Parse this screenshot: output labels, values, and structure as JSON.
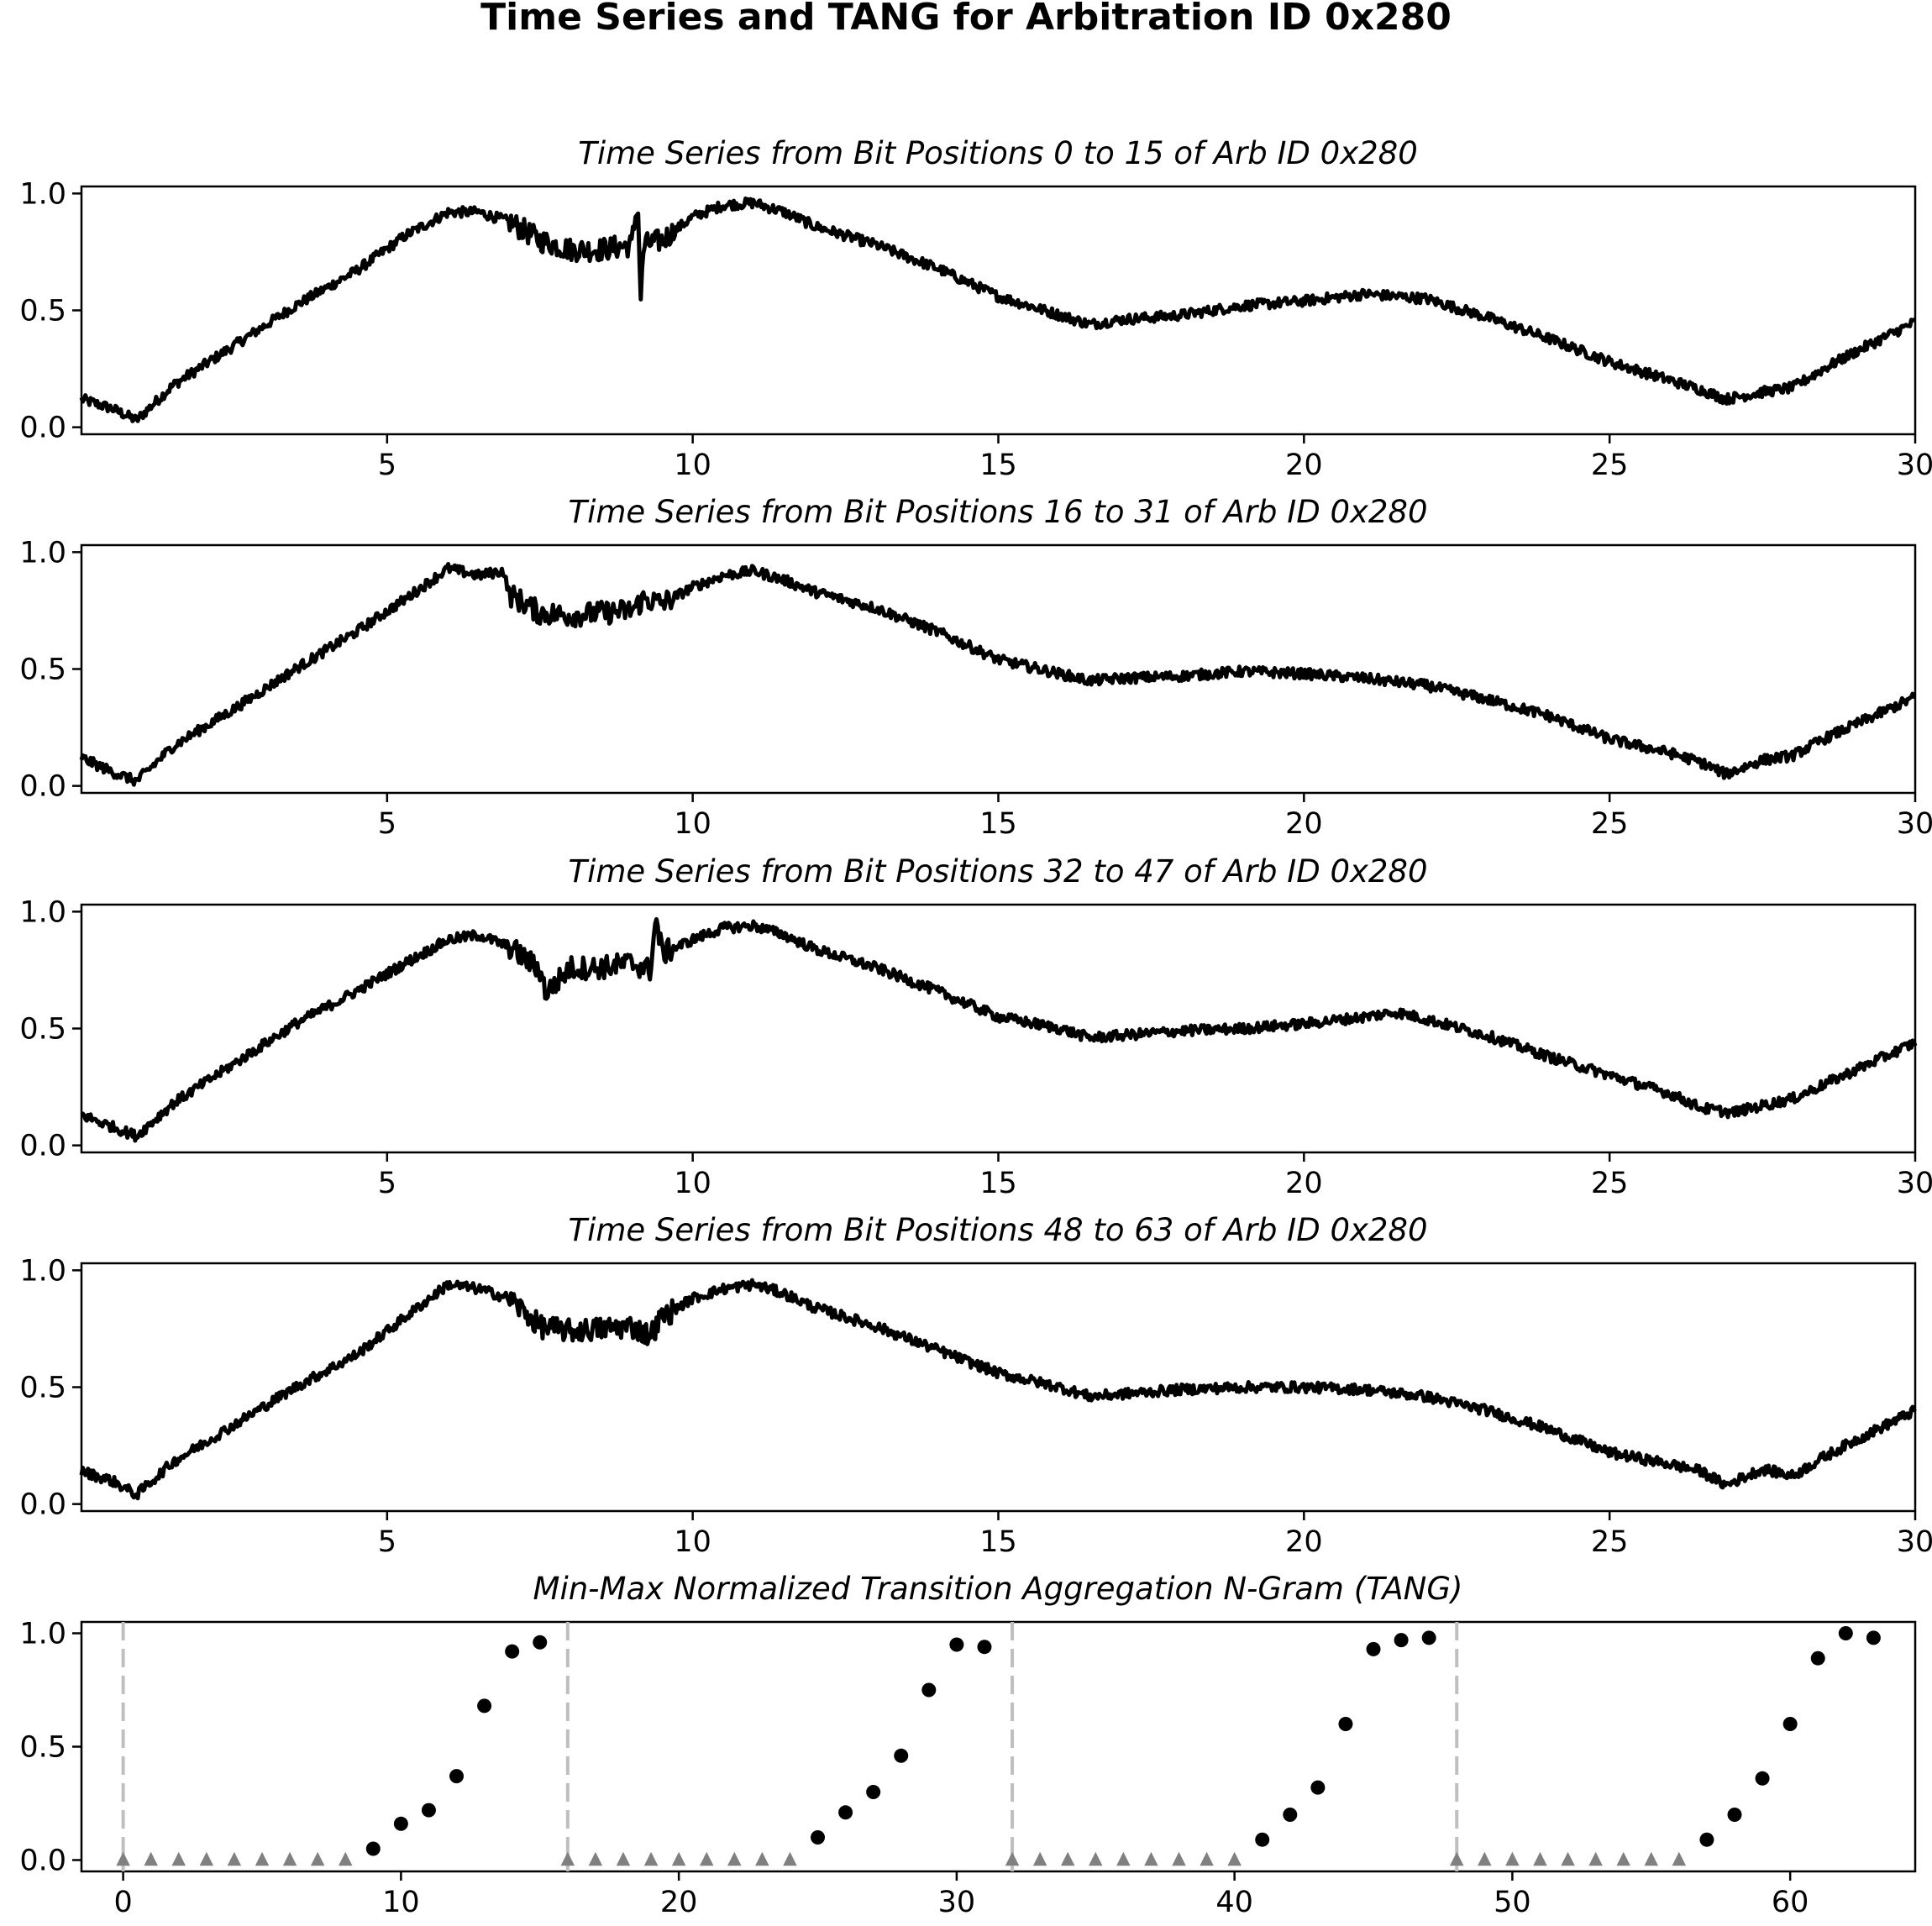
{
  "figure": {
    "title": "Time Series and TANG for Arbitration ID 0x280"
  },
  "chart_data": [
    {
      "type": "line",
      "title": "Time Series from Bit Positions 0 to 15 of Arb ID 0x280",
      "xlim": [
        0,
        30
      ],
      "ylim": [
        -0.03,
        1.03
      ],
      "xticks": [
        "5",
        "10",
        "15",
        "20",
        "25",
        "30"
      ],
      "yticks": [
        "0.0",
        "0.5",
        "1.0"
      ],
      "line_color": "#000000",
      "series": [
        {
          "x": [
            0,
            0.5,
            0.9,
            1.5,
            2.5,
            3.5,
            4.5,
            5.3,
            6.0,
            6.5,
            7.0,
            7.5,
            8.0,
            8.5,
            9.0,
            9.1,
            9.15,
            9.2,
            9.5,
            10.0,
            10.5,
            11.0,
            11.5,
            12.0,
            13.0,
            14.0,
            15.0,
            16.0,
            16.5,
            17.0,
            18.0,
            19.0,
            20.0,
            21.0,
            22.0,
            23.0,
            24.0,
            25.0,
            26.0,
            26.5,
            26.9,
            27.5,
            28.0,
            28.5,
            29.0,
            30.0
          ],
          "y": [
            0.12,
            0.08,
            0.03,
            0.18,
            0.35,
            0.52,
            0.67,
            0.82,
            0.92,
            0.92,
            0.88,
            0.8,
            0.76,
            0.76,
            0.78,
            0.97,
            0.55,
            0.78,
            0.8,
            0.9,
            0.95,
            0.96,
            0.92,
            0.86,
            0.78,
            0.68,
            0.56,
            0.48,
            0.44,
            0.46,
            0.48,
            0.52,
            0.54,
            0.57,
            0.55,
            0.47,
            0.38,
            0.28,
            0.2,
            0.16,
            0.12,
            0.15,
            0.17,
            0.25,
            0.32,
            0.45
          ]
        }
      ]
    },
    {
      "type": "line",
      "title": "Time Series from Bit Positions 16 to 31 of Arb ID 0x280",
      "xlim": [
        0,
        30
      ],
      "ylim": [
        -0.03,
        1.03
      ],
      "xticks": [
        "5",
        "10",
        "15",
        "20",
        "25",
        "30"
      ],
      "yticks": [
        "0.0",
        "0.5",
        "1.0"
      ],
      "line_color": "#000000",
      "series": [
        {
          "x": [
            0,
            0.5,
            0.9,
            1.5,
            2.5,
            3.5,
            4.5,
            5.3,
            6.0,
            6.5,
            6.9,
            7.0,
            7.5,
            8.0,
            8.5,
            9.0,
            9.2,
            9.5,
            10.0,
            10.5,
            11.0,
            11.5,
            12.0,
            13.0,
            14.0,
            15.0,
            16.0,
            16.5,
            17.0,
            18.0,
            19.0,
            20.0,
            21.0,
            22.0,
            23.0,
            24.0,
            25.0,
            26.0,
            26.5,
            26.9,
            27.5,
            28.0,
            28.5,
            29.0,
            30.0
          ],
          "y": [
            0.12,
            0.06,
            0.02,
            0.17,
            0.33,
            0.5,
            0.66,
            0.8,
            0.93,
            0.9,
            0.92,
            0.82,
            0.74,
            0.73,
            0.74,
            0.75,
            0.8,
            0.78,
            0.85,
            0.9,
            0.92,
            0.88,
            0.83,
            0.76,
            0.66,
            0.54,
            0.48,
            0.45,
            0.46,
            0.47,
            0.49,
            0.48,
            0.46,
            0.43,
            0.37,
            0.3,
            0.2,
            0.14,
            0.1,
            0.05,
            0.11,
            0.13,
            0.2,
            0.26,
            0.38
          ]
        }
      ]
    },
    {
      "type": "line",
      "title": "Time Series from Bit Positions 32 to 47 of Arb ID 0x280",
      "xlim": [
        0,
        30
      ],
      "ylim": [
        -0.03,
        1.03
      ],
      "xticks": [
        "5",
        "10",
        "15",
        "20",
        "25",
        "30"
      ],
      "yticks": [
        "0.0",
        "0.5",
        "1.0"
      ],
      "line_color": "#000000",
      "series": [
        {
          "x": [
            0,
            0.5,
            0.9,
            1.5,
            2.5,
            3.5,
            4.5,
            5.3,
            6.0,
            6.5,
            7.0,
            7.5,
            7.6,
            8.0,
            8.5,
            9.0,
            9.3,
            9.4,
            9.5,
            10.0,
            10.5,
            11.0,
            11.5,
            12.0,
            13.0,
            14.0,
            15.0,
            16.0,
            16.5,
            17.0,
            18.0,
            19.0,
            20.0,
            21.0,
            21.5,
            22.0,
            23.0,
            24.0,
            25.0,
            26.0,
            26.5,
            27.0,
            27.5,
            28.0,
            28.5,
            29.0,
            30.0
          ],
          "y": [
            0.13,
            0.08,
            0.04,
            0.18,
            0.35,
            0.52,
            0.66,
            0.78,
            0.88,
            0.9,
            0.85,
            0.75,
            0.65,
            0.76,
            0.76,
            0.78,
            0.75,
            0.97,
            0.82,
            0.88,
            0.93,
            0.94,
            0.9,
            0.84,
            0.76,
            0.66,
            0.55,
            0.5,
            0.46,
            0.47,
            0.49,
            0.5,
            0.52,
            0.55,
            0.57,
            0.54,
            0.47,
            0.38,
            0.3,
            0.22,
            0.16,
            0.14,
            0.17,
            0.2,
            0.26,
            0.32,
            0.44
          ]
        }
      ]
    },
    {
      "type": "line",
      "title": "Time Series from Bit Positions 48 to 63 of Arb ID 0x280",
      "xlim": [
        0,
        30
      ],
      "ylim": [
        -0.03,
        1.03
      ],
      "xticks": [
        "5",
        "10",
        "15",
        "20",
        "25",
        "30"
      ],
      "yticks": [
        "0.0",
        "0.5",
        "1.0"
      ],
      "line_color": "#000000",
      "series": [
        {
          "x": [
            0,
            0.5,
            0.9,
            1.5,
            2.5,
            3.5,
            4.5,
            5.3,
            5.8,
            6.0,
            6.5,
            7.0,
            7.5,
            8.0,
            8.5,
            9.0,
            9.3,
            9.5,
            10.0,
            10.5,
            11.0,
            11.5,
            12.0,
            13.0,
            14.0,
            15.0,
            16.0,
            16.5,
            17.0,
            18.0,
            19.0,
            20.0,
            21.0,
            22.0,
            23.0,
            24.0,
            25.0,
            26.0,
            26.5,
            26.9,
            27.5,
            28.0,
            28.5,
            29.0,
            30.0
          ],
          "y": [
            0.14,
            0.1,
            0.04,
            0.18,
            0.34,
            0.5,
            0.64,
            0.8,
            0.9,
            0.94,
            0.92,
            0.88,
            0.76,
            0.74,
            0.75,
            0.76,
            0.72,
            0.8,
            0.88,
            0.92,
            0.94,
            0.9,
            0.84,
            0.76,
            0.66,
            0.56,
            0.5,
            0.46,
            0.47,
            0.49,
            0.5,
            0.5,
            0.49,
            0.46,
            0.4,
            0.32,
            0.22,
            0.17,
            0.14,
            0.08,
            0.15,
            0.12,
            0.2,
            0.27,
            0.4
          ]
        }
      ]
    },
    {
      "type": "scatter",
      "title": "Min-Max Normalized Transition Aggregation N-Gram (TANG)",
      "xlim": [
        -1.5,
        64.5
      ],
      "ylim": [
        -0.05,
        1.05
      ],
      "xticks": [
        "0",
        "10",
        "20",
        "30",
        "40",
        "50",
        "60"
      ],
      "yticks": [
        "0.0",
        "0.5",
        "1.0"
      ],
      "boundary_lines": [
        0,
        16,
        32,
        48
      ],
      "boundary_color": "#bfbfbf",
      "circle_color": "#000000",
      "triangle_color": "#808080",
      "series": [
        {
          "marker": "circle",
          "x": [
            9,
            10,
            11,
            12,
            13,
            14,
            15,
            25,
            26,
            27,
            28,
            29,
            30,
            31,
            41,
            42,
            43,
            44,
            45,
            46,
            47,
            57,
            58,
            59,
            60,
            61,
            62,
            63
          ],
          "y": [
            0.05,
            0.16,
            0.22,
            0.37,
            0.68,
            0.92,
            0.96,
            0.1,
            0.21,
            0.3,
            0.46,
            0.75,
            0.95,
            0.94,
            0.09,
            0.2,
            0.32,
            0.6,
            0.93,
            0.97,
            0.98,
            0.09,
            0.2,
            0.36,
            0.6,
            0.89,
            1.0,
            0.98
          ]
        },
        {
          "marker": "triangle",
          "x": [
            0,
            1,
            2,
            3,
            4,
            5,
            6,
            7,
            8,
            16,
            17,
            18,
            19,
            20,
            21,
            22,
            23,
            24,
            32,
            33,
            34,
            35,
            36,
            37,
            38,
            39,
            40,
            48,
            49,
            50,
            51,
            52,
            53,
            54,
            55,
            56
          ],
          "y": [
            0,
            0,
            0,
            0,
            0,
            0,
            0,
            0,
            0,
            0,
            0,
            0,
            0,
            0,
            0,
            0,
            0,
            0,
            0,
            0,
            0,
            0,
            0,
            0,
            0,
            0,
            0,
            0,
            0,
            0,
            0,
            0,
            0,
            0,
            0,
            0
          ]
        }
      ]
    }
  ]
}
